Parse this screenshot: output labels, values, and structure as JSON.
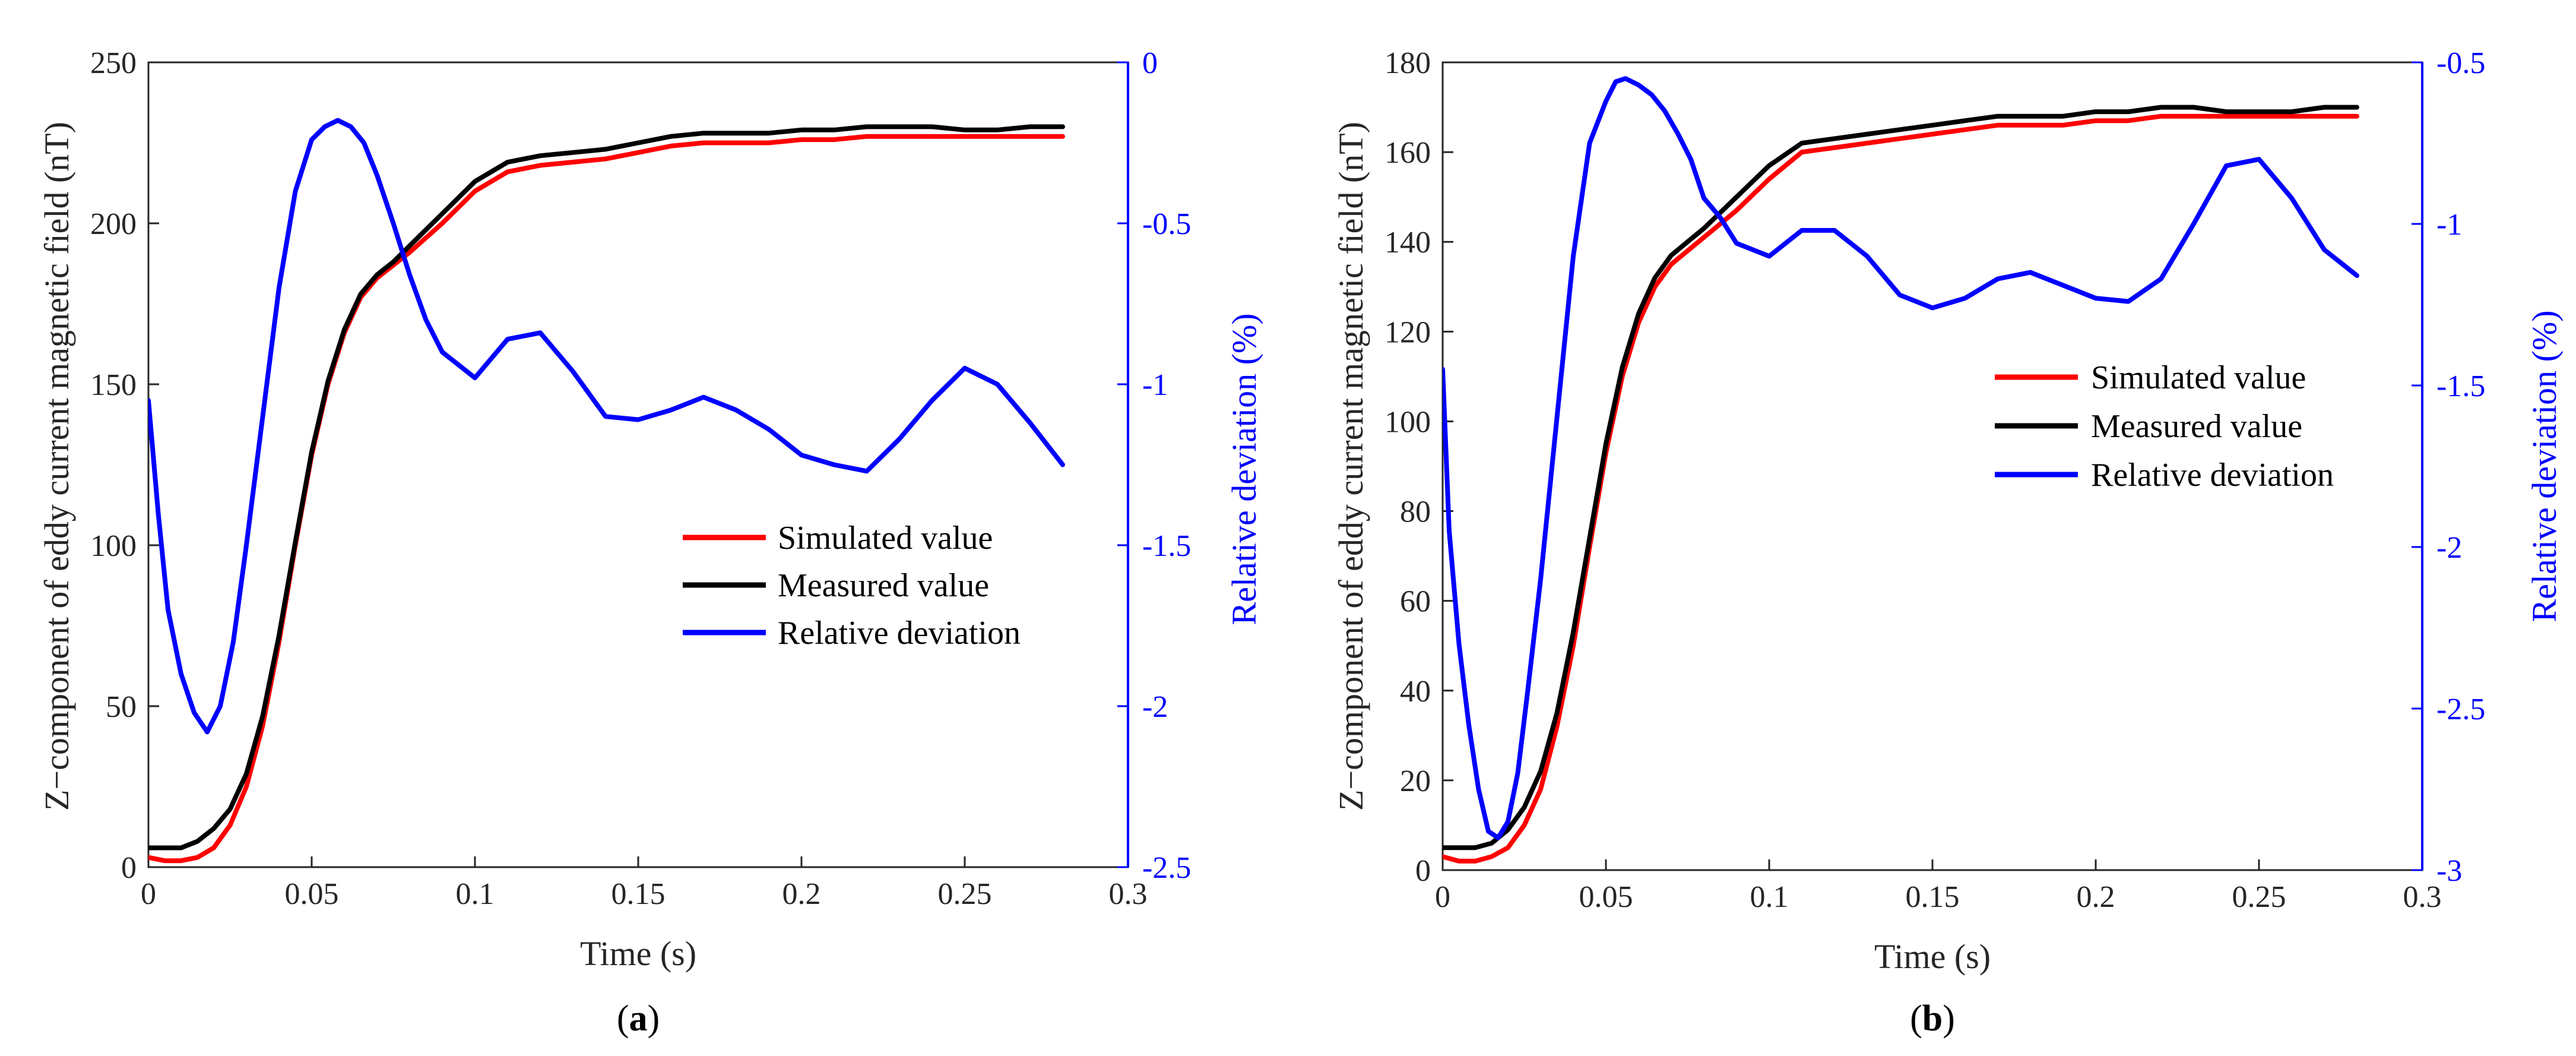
{
  "chart_data": [
    {
      "panel": "a",
      "type": "line",
      "xlabel": "Time (s)",
      "ylabel": "Z−component of eddy current magnetic field (nT)",
      "y2label": "Relative deviation (%)",
      "xlim": [
        0,
        0.3
      ],
      "ylim": [
        0,
        250
      ],
      "y2lim": [
        -2.5,
        0
      ],
      "xticks": [
        0,
        0.05,
        0.1,
        0.15,
        0.2,
        0.25,
        0.3
      ],
      "xtick_labels": [
        "0",
        "0.05",
        "0.1",
        "0.15",
        "0.2",
        "0.25",
        "0.3"
      ],
      "yticks": [
        0,
        50,
        100,
        150,
        200,
        250
      ],
      "ytick_labels": [
        "0",
        "50",
        "100",
        "150",
        "200",
        "250"
      ],
      "y2ticks": [
        0,
        -0.5,
        -1,
        -1.5,
        -2,
        -2.5
      ],
      "y2tick_labels": [
        "0",
        "-0.5",
        "-1",
        "-1.5",
        "-2",
        "-2.5"
      ],
      "legend_position": "center-right",
      "series": [
        {
          "name": "Simulated value",
          "axis": "left",
          "color": "#ff0000",
          "x": [
            0,
            0.005,
            0.01,
            0.015,
            0.02,
            0.025,
            0.03,
            0.035,
            0.04,
            0.045,
            0.05,
            0.055,
            0.06,
            0.065,
            0.07,
            0.075,
            0.08,
            0.09,
            0.1,
            0.11,
            0.12,
            0.13,
            0.14,
            0.15,
            0.16,
            0.17,
            0.18,
            0.19,
            0.2,
            0.21,
            0.22,
            0.23,
            0.24,
            0.25,
            0.26,
            0.27,
            0.28
          ],
          "values": [
            3,
            2,
            2,
            3,
            6,
            13,
            25,
            44,
            70,
            100,
            128,
            150,
            166,
            177,
            183,
            187,
            191,
            200,
            210,
            216,
            218,
            219,
            220,
            222,
            224,
            225,
            225,
            225,
            226,
            226,
            227,
            227,
            227,
            227,
            227,
            227,
            227
          ]
        },
        {
          "name": "Measured value",
          "axis": "left",
          "color": "#000000",
          "x": [
            0,
            0.005,
            0.01,
            0.015,
            0.02,
            0.025,
            0.03,
            0.035,
            0.04,
            0.045,
            0.05,
            0.055,
            0.06,
            0.065,
            0.07,
            0.075,
            0.08,
            0.09,
            0.1,
            0.11,
            0.12,
            0.13,
            0.14,
            0.15,
            0.16,
            0.17,
            0.18,
            0.19,
            0.2,
            0.21,
            0.22,
            0.23,
            0.24,
            0.25,
            0.26,
            0.27,
            0.28
          ],
          "values": [
            6,
            6,
            6,
            8,
            12,
            18,
            29,
            47,
            72,
            101,
            129,
            151,
            167,
            178,
            184,
            188,
            193,
            203,
            213,
            219,
            221,
            222,
            223,
            225,
            227,
            228,
            228,
            228,
            229,
            229,
            230,
            230,
            230,
            229,
            229,
            230,
            230
          ]
        },
        {
          "name": "Relative deviation",
          "axis": "right",
          "color": "#0000ff",
          "x": [
            0,
            0.003,
            0.006,
            0.01,
            0.014,
            0.018,
            0.022,
            0.026,
            0.03,
            0.035,
            0.04,
            0.045,
            0.05,
            0.054,
            0.058,
            0.062,
            0.066,
            0.07,
            0.075,
            0.08,
            0.085,
            0.09,
            0.1,
            0.11,
            0.12,
            0.13,
            0.14,
            0.15,
            0.16,
            0.17,
            0.18,
            0.19,
            0.2,
            0.21,
            0.22,
            0.23,
            0.24,
            0.25,
            0.26,
            0.27,
            0.28
          ],
          "values": [
            -1.05,
            -1.4,
            -1.7,
            -1.9,
            -2.02,
            -2.08,
            -2.0,
            -1.8,
            -1.5,
            -1.1,
            -0.7,
            -0.4,
            -0.24,
            -0.2,
            -0.18,
            -0.2,
            -0.25,
            -0.35,
            -0.5,
            -0.66,
            -0.8,
            -0.9,
            -0.98,
            -0.86,
            -0.84,
            -0.96,
            -1.1,
            -1.11,
            -1.08,
            -1.04,
            -1.08,
            -1.14,
            -1.22,
            -1.25,
            -1.27,
            -1.17,
            -1.05,
            -0.95,
            -1.0,
            -1.12,
            -1.25
          ]
        }
      ]
    },
    {
      "panel": "b",
      "type": "line",
      "xlabel": "Time (s)",
      "ylabel": "Z−component of eddy current magnetic field (nT)",
      "y2label": "Relative deviation (%)",
      "xlim": [
        0,
        0.3
      ],
      "ylim": [
        0,
        180
      ],
      "y2lim": [
        -3,
        -0.5
      ],
      "xticks": [
        0,
        0.05,
        0.1,
        0.15,
        0.2,
        0.25,
        0.3
      ],
      "xtick_labels": [
        "0",
        "0.05",
        "0.1",
        "0.15",
        "0.2",
        "0.25",
        "0.3"
      ],
      "yticks": [
        0,
        20,
        40,
        60,
        80,
        100,
        120,
        140,
        160,
        180
      ],
      "ytick_labels": [
        "0",
        "20",
        "40",
        "60",
        "80",
        "100",
        "120",
        "140",
        "160",
        "180"
      ],
      "y2ticks": [
        -0.5,
        -1,
        -1.5,
        -2,
        -2.5,
        -3
      ],
      "y2tick_labels": [
        "-0.5",
        "-1",
        "-1.5",
        "-2",
        "-2.5",
        "-3"
      ],
      "legend_position": "center-right",
      "series": [
        {
          "name": "Simulated value",
          "axis": "left",
          "color": "#ff0000",
          "x": [
            0,
            0.005,
            0.01,
            0.015,
            0.02,
            0.025,
            0.03,
            0.035,
            0.04,
            0.045,
            0.05,
            0.055,
            0.06,
            0.065,
            0.07,
            0.075,
            0.08,
            0.09,
            0.1,
            0.11,
            0.12,
            0.13,
            0.14,
            0.15,
            0.16,
            0.17,
            0.18,
            0.19,
            0.2,
            0.21,
            0.22,
            0.23,
            0.24,
            0.25,
            0.26,
            0.27,
            0.28
          ],
          "values": [
            3,
            2,
            2,
            3,
            5,
            10,
            18,
            32,
            50,
            72,
            93,
            110,
            122,
            130,
            135,
            138,
            141,
            147,
            154,
            160,
            161,
            162,
            163,
            164,
            165,
            166,
            166,
            166,
            167,
            167,
            168,
            168,
            168,
            168,
            168,
            168,
            168
          ]
        },
        {
          "name": "Measured value",
          "axis": "left",
          "color": "#000000",
          "x": [
            0,
            0.005,
            0.01,
            0.015,
            0.02,
            0.025,
            0.03,
            0.035,
            0.04,
            0.045,
            0.05,
            0.055,
            0.06,
            0.065,
            0.07,
            0.075,
            0.08,
            0.09,
            0.1,
            0.11,
            0.12,
            0.13,
            0.14,
            0.15,
            0.16,
            0.17,
            0.18,
            0.19,
            0.2,
            0.21,
            0.22,
            0.23,
            0.24,
            0.25,
            0.26,
            0.27,
            0.28
          ],
          "values": [
            5,
            5,
            5,
            6,
            9,
            14,
            22,
            35,
            53,
            74,
            95,
            112,
            124,
            132,
            137,
            140,
            143,
            150,
            157,
            162,
            163,
            164,
            165,
            166,
            167,
            168,
            168,
            168,
            169,
            169,
            170,
            170,
            169,
            169,
            169,
            170,
            170
          ]
        },
        {
          "name": "Relative deviation",
          "axis": "right",
          "color": "#0000ff",
          "x": [
            0,
            0.002,
            0.005,
            0.008,
            0.011,
            0.014,
            0.017,
            0.02,
            0.023,
            0.026,
            0.03,
            0.035,
            0.04,
            0.045,
            0.05,
            0.053,
            0.056,
            0.06,
            0.064,
            0.068,
            0.072,
            0.076,
            0.08,
            0.085,
            0.09,
            0.1,
            0.11,
            0.12,
            0.13,
            0.14,
            0.15,
            0.16,
            0.17,
            0.18,
            0.19,
            0.2,
            0.21,
            0.22,
            0.23,
            0.24,
            0.25,
            0.26,
            0.27,
            0.28
          ],
          "values": [
            -1.45,
            -1.95,
            -2.3,
            -2.55,
            -2.75,
            -2.88,
            -2.9,
            -2.85,
            -2.7,
            -2.45,
            -2.1,
            -1.6,
            -1.1,
            -0.75,
            -0.62,
            -0.56,
            -0.55,
            -0.57,
            -0.6,
            -0.65,
            -0.72,
            -0.8,
            -0.92,
            -0.98,
            -1.06,
            -1.1,
            -1.02,
            -1.02,
            -1.1,
            -1.22,
            -1.26,
            -1.23,
            -1.17,
            -1.15,
            -1.19,
            -1.23,
            -1.24,
            -1.17,
            -1.0,
            -0.82,
            -0.8,
            -0.92,
            -1.08,
            -1.16
          ]
        }
      ]
    }
  ]
}
